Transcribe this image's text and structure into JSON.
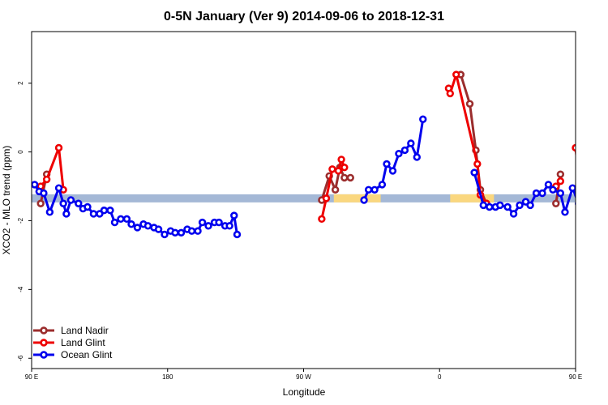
{
  "chart_data": {
    "type": "line",
    "title": "0-5N January (Ver 9)   2014-09-06 to 2018-12-31",
    "xlabel": "Longitude",
    "ylabel": "XCO2 - MLO trend (ppm)",
    "xlim": [
      90,
      450
    ],
    "ylim": [
      -6.3,
      3.5
    ],
    "x_ticks": [
      {
        "value": 90,
        "label": "90 E"
      },
      {
        "value": 180,
        "label": "180"
      },
      {
        "value": 270,
        "label": "90 W"
      },
      {
        "value": 360,
        "label": "0"
      },
      {
        "value": 450,
        "label": "90 E"
      },
      {
        "value": 540,
        "label": "180"
      }
    ],
    "y_ticks": [
      {
        "value": 2,
        "label": "2"
      },
      {
        "value": 0,
        "label": "0"
      },
      {
        "value": -2,
        "label": "-2"
      },
      {
        "value": -4,
        "label": "-4"
      },
      {
        "value": -6,
        "label": "-6"
      }
    ],
    "legend_position": "bottom-left",
    "band": {
      "y": -1.35,
      "color": "#a4b8d6",
      "highlight_color": "#fad77f",
      "highlight_ranges": [
        [
          290,
          321
        ],
        [
          367,
          396
        ]
      ]
    },
    "series": [
      {
        "name": "Land Nadir",
        "color": "#9b2d2d",
        "segments": [
          [
            [
              96,
              -1.5
            ],
            [
              100,
              -0.65
            ]
          ],
          [
            [
              282,
              -1.4
            ],
            [
              287,
              -0.7
            ],
            [
              291,
              -1.1
            ],
            [
              294,
              -0.45
            ],
            [
              297,
              -0.75
            ],
            [
              301,
              -0.75
            ]
          ],
          [
            [
              374,
              2.25
            ],
            [
              380,
              1.4
            ],
            [
              384,
              0.05
            ],
            [
              387,
              -1.1
            ],
            [
              391,
              -1.5
            ]
          ],
          [
            [
              437,
              -1.5
            ],
            [
              440,
              -0.65
            ]
          ]
        ]
      },
      {
        "name": "Land Glint",
        "color": "#ee0000",
        "segments": [
          [
            [
              96,
              -1.0
            ],
            [
              100,
              -0.8
            ],
            [
              108,
              0.12
            ],
            [
              111,
              -1.1
            ]
          ],
          [
            [
              282,
              -1.95
            ],
            [
              285,
              -1.35
            ],
            [
              289,
              -0.5
            ],
            [
              293,
              -0.55
            ],
            [
              295,
              -0.22
            ],
            [
              297,
              -0.45
            ]
          ],
          [
            [
              366,
              1.85
            ],
            [
              367,
              1.7
            ],
            [
              371,
              2.25
            ],
            [
              385,
              -0.35
            ],
            [
              387,
              -1.25
            ],
            [
              391,
              -1.5
            ]
          ],
          [
            [
              437,
              -1.0
            ],
            [
              440,
              -0.85
            ]
          ],
          [
            [
              450,
              0.12
            ],
            [
              453,
              -1.1
            ]
          ]
        ]
      },
      {
        "name": "Ocean Glint",
        "color": "#0000ee",
        "segments": [
          [
            [
              92,
              -0.95
            ],
            [
              95,
              -1.15
            ],
            [
              98,
              -1.2
            ],
            [
              102,
              -1.75
            ],
            [
              108,
              -1.05
            ],
            [
              111,
              -1.5
            ],
            [
              113,
              -1.8
            ],
            [
              116,
              -1.4
            ],
            [
              121,
              -1.5
            ],
            [
              124,
              -1.65
            ],
            [
              127,
              -1.6
            ],
            [
              131,
              -1.8
            ],
            [
              135,
              -1.8
            ],
            [
              138,
              -1.7
            ],
            [
              142,
              -1.7
            ],
            [
              145,
              -2.05
            ],
            [
              149,
              -1.95
            ],
            [
              153,
              -1.95
            ],
            [
              156,
              -2.1
            ],
            [
              160,
              -2.2
            ],
            [
              164,
              -2.1
            ],
            [
              167,
              -2.15
            ],
            [
              171,
              -2.2
            ],
            [
              174,
              -2.25
            ],
            [
              178,
              -2.4
            ],
            [
              182,
              -2.3
            ],
            [
              185,
              -2.35
            ],
            [
              189,
              -2.35
            ],
            [
              193,
              -2.25
            ],
            [
              196,
              -2.3
            ],
            [
              200,
              -2.3
            ],
            [
              203,
              -2.05
            ],
            [
              207,
              -2.15
            ],
            [
              211,
              -2.05
            ],
            [
              214,
              -2.05
            ],
            [
              218,
              -2.15
            ],
            [
              221,
              -2.15
            ],
            [
              224,
              -1.85
            ],
            [
              226,
              -2.4
            ]
          ],
          [
            [
              310,
              -1.4
            ],
            [
              313,
              -1.1
            ],
            [
              317,
              -1.1
            ],
            [
              322,
              -0.95
            ],
            [
              325,
              -0.35
            ],
            [
              329,
              -0.55
            ],
            [
              333,
              -0.05
            ],
            [
              337,
              0.05
            ],
            [
              341,
              0.25
            ],
            [
              345,
              -0.15
            ],
            [
              349,
              0.95
            ]
          ],
          [
            [
              383,
              -0.6
            ],
            [
              389,
              -1.55
            ],
            [
              393,
              -1.6
            ],
            [
              397,
              -1.6
            ],
            [
              400,
              -1.55
            ],
            [
              405,
              -1.6
            ],
            [
              409,
              -1.8
            ],
            [
              413,
              -1.55
            ],
            [
              417,
              -1.45
            ],
            [
              420,
              -1.55
            ],
            [
              424,
              -1.2
            ],
            [
              428,
              -1.2
            ],
            [
              432,
              -0.95
            ],
            [
              435,
              -1.1
            ],
            [
              440,
              -1.2
            ],
            [
              443,
              -1.75
            ],
            [
              448,
              -1.05
            ],
            [
              452,
              -1.5
            ],
            [
              455,
              -1.8
            ],
            [
              458,
              -1.4
            ],
            [
              463,
              -1.5
            ],
            [
              467,
              -1.65
            ],
            [
              470,
              -1.6
            ],
            [
              474,
              -1.8
            ],
            [
              478,
              -1.8
            ],
            [
              482,
              -1.65
            ],
            [
              486,
              -1.7
            ],
            [
              490,
              -2.05
            ],
            [
              494,
              -1.95
            ],
            [
              498,
              -1.95
            ]
          ]
        ]
      }
    ]
  }
}
